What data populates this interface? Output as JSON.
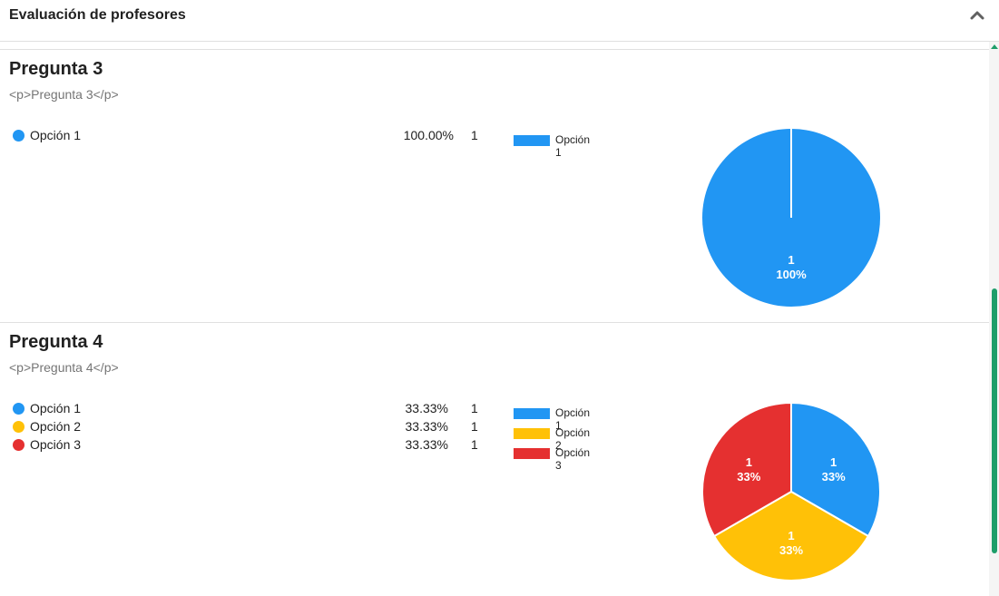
{
  "header": {
    "title": "Evaluación de profesores",
    "collapse_icon": "chevron-up-icon"
  },
  "colors": {
    "blue": "#2196F3",
    "yellow": "#FFC107",
    "red": "#E53030",
    "scroll": "#1E9E6A"
  },
  "questions": [
    {
      "title": "Pregunta 3",
      "description": "<p>Pregunta 3</p>",
      "options": [
        {
          "label": "Opción 1",
          "percent": "100.00%",
          "count": "1",
          "color": "#2196F3"
        }
      ],
      "legend": [
        "Opción 1"
      ]
    },
    {
      "title": "Pregunta 4",
      "description": "<p>Pregunta 4</p>",
      "options": [
        {
          "label": "Opción 1",
          "percent": "33.33%",
          "count": "1",
          "color": "#2196F3"
        },
        {
          "label": "Opción 2",
          "percent": "33.33%",
          "count": "1",
          "color": "#FFC107"
        },
        {
          "label": "Opción 3",
          "percent": "33.33%",
          "count": "1",
          "color": "#E53030"
        }
      ],
      "legend": [
        "Opción 1",
        "Opción 2",
        "Opción 3"
      ]
    }
  ],
  "chart_data": [
    {
      "type": "pie",
      "categories": [
        "Opción 1"
      ],
      "values": [
        1
      ],
      "labels": [
        {
          "count": "1",
          "percent": "100%"
        }
      ],
      "colors": [
        "#2196F3"
      ]
    },
    {
      "type": "pie",
      "categories": [
        "Opción 1",
        "Opción 2",
        "Opción 3"
      ],
      "values": [
        1,
        1,
        1
      ],
      "labels": [
        {
          "count": "1",
          "percent": "33%"
        },
        {
          "count": "1",
          "percent": "33%"
        },
        {
          "count": "1",
          "percent": "33%"
        }
      ],
      "colors": [
        "#2196F3",
        "#FFC107",
        "#E53030"
      ]
    }
  ]
}
